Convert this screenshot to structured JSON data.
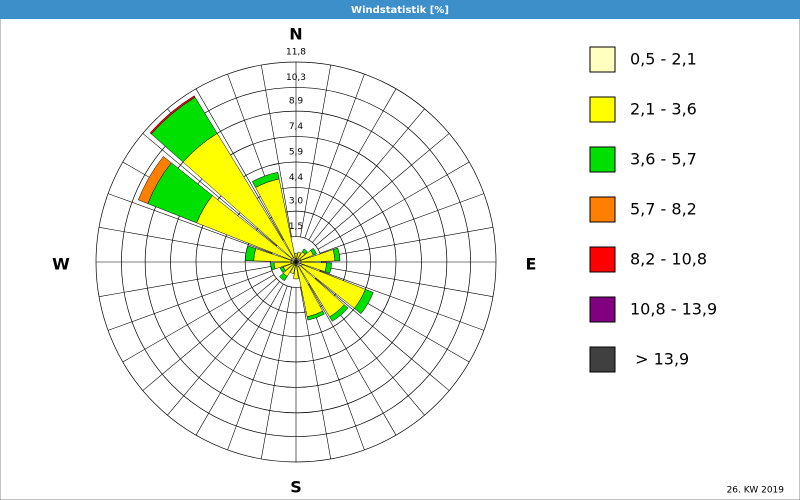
{
  "chart_data": {
    "type": "windrose",
    "title": "Windstatistik [%]",
    "footer": "26. KW 2019",
    "compass": [
      "N",
      "E",
      "S",
      "W"
    ],
    "x": [
      0,
      20,
      40,
      60,
      80,
      100,
      120,
      140,
      160,
      180,
      200,
      220,
      240,
      260,
      280,
      300,
      320,
      340
    ],
    "xlim": [
      0,
      360
    ],
    "ylim": [
      0,
      11.8
    ],
    "yticks": [
      {
        "value": 1.5,
        "label": "1,5"
      },
      {
        "value": 3.0,
        "label": "3,0"
      },
      {
        "value": 4.4,
        "label": "4,4"
      },
      {
        "value": 5.9,
        "label": "5,9"
      },
      {
        "value": 7.4,
        "label": "7,4"
      },
      {
        "value": 8.9,
        "label": "8,9"
      },
      {
        "value": 10.3,
        "label": "10,3"
      },
      {
        "value": 11.8,
        "label": "11,8"
      }
    ],
    "grid": true,
    "series": [
      {
        "name": "0,5 - 2,1",
        "color": "#ffffc0",
        "values": [
          0.2,
          0.2,
          0.2,
          0.3,
          0.3,
          0.3,
          0.4,
          0.3,
          0.3,
          0.2,
          0.2,
          0.2,
          0.2,
          0.3,
          0.3,
          0.3,
          0.3,
          0.3
        ]
      },
      {
        "name": "2,1 - 3,6",
        "color": "#ffff00",
        "values": [
          0.3,
          0.4,
          0.5,
          0.8,
          2.0,
          1.5,
          4.0,
          3.5,
          3.0,
          0.8,
          0.5,
          0.8,
          0.6,
          1.0,
          2.2,
          6.0,
          8.6,
          4.7
        ]
      },
      {
        "name": "3,6 - 5,7",
        "color": "#00e000",
        "values": [
          0,
          0,
          0.2,
          0.2,
          0.3,
          0.3,
          0.5,
          0.3,
          0.2,
          0,
          0,
          0.3,
          0.2,
          0.2,
          0.5,
          3.1,
          2.5,
          0.4
        ]
      },
      {
        "name": "5,7 - 8,2",
        "color": "#ff8000",
        "values": [
          0,
          0,
          0,
          0,
          0,
          0,
          0,
          0,
          0,
          0,
          0,
          0,
          0,
          0,
          0,
          0.6,
          0,
          0
        ]
      },
      {
        "name": "8,2 - 10,8",
        "color": "#ff0000",
        "values": [
          0,
          0,
          0,
          0,
          0,
          0,
          0,
          0,
          0,
          0,
          0,
          0,
          0,
          0,
          0,
          0,
          0.1,
          0
        ]
      },
      {
        "name": "10,8 - 13,9",
        "color": "#800080",
        "values": [
          0,
          0,
          0,
          0,
          0,
          0,
          0,
          0,
          0,
          0,
          0,
          0,
          0,
          0,
          0,
          0,
          0,
          0
        ]
      },
      {
        "name": " > 13,9",
        "color": "#404040",
        "values": [
          0,
          0,
          0,
          0,
          0,
          0,
          0,
          0,
          0,
          0,
          0,
          0,
          0,
          0,
          0,
          0,
          0,
          0
        ]
      }
    ]
  }
}
